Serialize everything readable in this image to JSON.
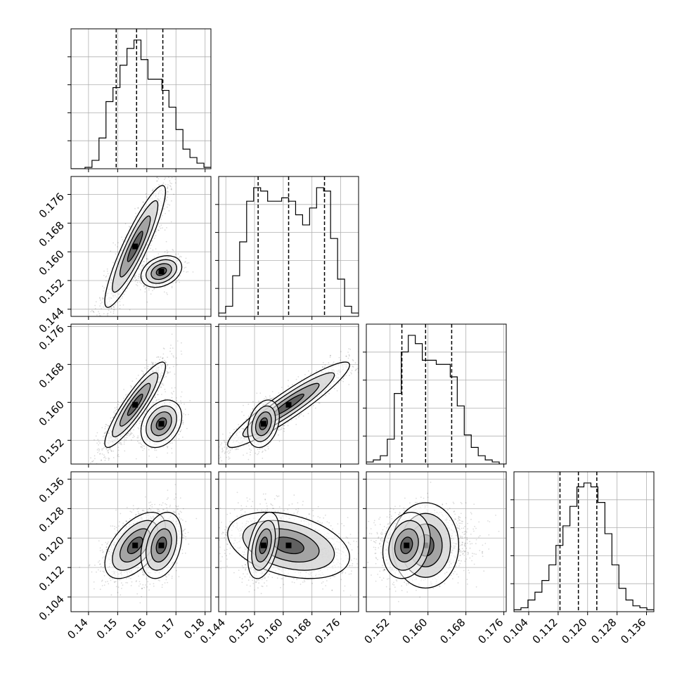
{
  "chart_data": {
    "type": "corner",
    "parameters": 4,
    "ticks": [
      {
        "values": [
          0.14,
          0.15,
          0.16,
          0.17,
          0.18
        ],
        "labels": [
          "0.14",
          "0.15",
          "0.16",
          "0.17",
          "0.18"
        ],
        "range": [
          0.134,
          0.182
        ]
      },
      {
        "values": [
          0.144,
          0.152,
          0.16,
          0.168,
          0.176
        ],
        "labels": [
          "0.144",
          "0.152",
          "0.160",
          "0.168",
          "0.176"
        ],
        "range": [
          0.142,
          0.181
        ]
      },
      {
        "values": [
          0.152,
          0.16,
          0.168,
          0.176
        ],
        "labels": [
          "0.152",
          "0.160",
          "0.168",
          "0.176"
        ],
        "range": [
          0.147,
          0.1765
        ]
      },
      {
        "values": [
          0.104,
          0.112,
          0.12,
          0.128,
          0.136
        ],
        "labels": [
          "0.104",
          "0.112",
          "0.120",
          "0.128",
          "0.136"
        ],
        "range": [
          0.1,
          0.138
        ]
      }
    ],
    "quantiles": [
      [
        0.1495,
        0.1565,
        0.1655
      ],
      [
        0.153,
        0.1615,
        0.1715
      ],
      [
        0.1545,
        0.1595,
        0.165
      ],
      [
        0.1125,
        0.1175,
        0.1225
      ]
    ],
    "histograms": [
      {
        "x": 0.134,
        "edges_step": 0.0024,
        "counts": [
          0,
          0,
          1,
          6,
          22,
          48,
          58,
          74,
          86,
          92,
          78,
          64,
          64,
          56,
          44,
          28,
          14,
          8,
          4,
          1
        ]
      },
      {
        "x": 0.142,
        "edges_step": 0.00195,
        "counts": [
          2,
          6,
          24,
          44,
          68,
          76,
          74,
          68,
          68,
          70,
          68,
          60,
          54,
          64,
          76,
          74,
          46,
          22,
          6,
          2
        ]
      },
      {
        "x": 0.147,
        "edges_step": 0.001475,
        "counts": [
          1,
          2,
          4,
          12,
          34,
          54,
          62,
          58,
          50,
          50,
          48,
          48,
          42,
          28,
          14,
          8,
          4,
          2,
          1,
          0
        ]
      },
      {
        "x": 0.1,
        "edges_step": 0.0019,
        "counts": [
          1,
          2,
          6,
          10,
          16,
          24,
          34,
          44,
          54,
          64,
          66,
          64,
          56,
          40,
          24,
          12,
          6,
          3,
          2,
          1
        ]
      }
    ],
    "modes": [
      [
        {
          "w": 0.72,
          "m": [
            0.156,
            0.1615,
            0.1595,
            0.118
          ],
          "s": [
            0.0052,
            0.0085,
            0.0045,
            0.0045
          ],
          "r": {
            "0-1": 0.9,
            "0-2": 0.9,
            "1-2": 0.93,
            "0-3": 0.55,
            "1-3": -0.35,
            "2-3": 0.0
          }
        }
      ],
      [
        {
          "w": 0.28,
          "m": [
            0.165,
            0.1545,
            0.1555,
            0.118
          ],
          "s": [
            0.0035,
            0.0022,
            0.0025,
            0.0045
          ],
          "r": {
            "0-1": 0.3,
            "0-2": 0.3,
            "1-2": 0.3,
            "0-3": 0.3,
            "1-3": 0.4,
            "2-3": 0.2
          }
        }
      ]
    ]
  }
}
